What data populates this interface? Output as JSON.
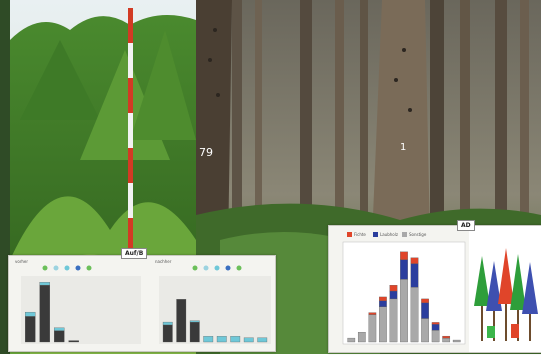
{
  "photos": {
    "left": {
      "content": "young spruce regeneration with red-white survey pole"
    },
    "middle": {
      "content": "mature spruce stand with numbered trunks",
      "trunk_label_1": "79",
      "trunk_label_2": "1"
    }
  },
  "overlays": {
    "left_panel": {
      "tag": "Auf/B",
      "chart_a": {
        "header": "vorher"
      },
      "chart_b": {
        "header": "nachher"
      }
    },
    "right_panel": {
      "tag": "AD",
      "legend": [
        "Fichte",
        "Laubholz",
        "Sonstige"
      ]
    }
  },
  "colors": {
    "dark_bar": "#3a3a3a",
    "light_bar": "#6fc8d8",
    "green_bar": "#6bc05a",
    "red_bar": "#e0452a",
    "blue_bar": "#2b3e9e",
    "gray_bar": "#a9a9a9"
  },
  "chart_data": [
    {
      "type": "bar",
      "title": "",
      "categories": [
        "1",
        "2",
        "3",
        "4",
        "5",
        "6",
        "7",
        "8"
      ],
      "series": [
        {
          "values": [
            18,
            40,
            8,
            1,
            0,
            0,
            0,
            0
          ]
        },
        {
          "values": [
            3,
            2,
            2,
            0,
            0,
            0,
            0,
            0
          ]
        }
      ]
    },
    {
      "type": "bar",
      "title": "",
      "categories": [
        "1",
        "2",
        "3",
        "4",
        "5",
        "6",
        "7",
        "8"
      ],
      "series": [
        {
          "values": [
            12,
            30,
            14,
            0,
            0,
            0,
            0,
            0
          ]
        },
        {
          "values": [
            2,
            0,
            1,
            4,
            4,
            4,
            3,
            3
          ]
        }
      ]
    },
    {
      "type": "bar",
      "title": "",
      "categories": [
        "1",
        "2",
        "3",
        "4",
        "5",
        "6",
        "7",
        "8",
        "9",
        "10",
        "11"
      ],
      "series": [
        {
          "name": "Sonstige",
          "values": [
            2,
            5,
            14,
            18,
            22,
            32,
            28,
            12,
            6,
            2,
            1
          ]
        },
        {
          "name": "Laubholz",
          "values": [
            0,
            0,
            0,
            3,
            4,
            10,
            12,
            8,
            3,
            0,
            0
          ]
        },
        {
          "name": "Fichte",
          "values": [
            0,
            0,
            1,
            2,
            3,
            4,
            3,
            2,
            1,
            1,
            0
          ]
        }
      ]
    }
  ]
}
